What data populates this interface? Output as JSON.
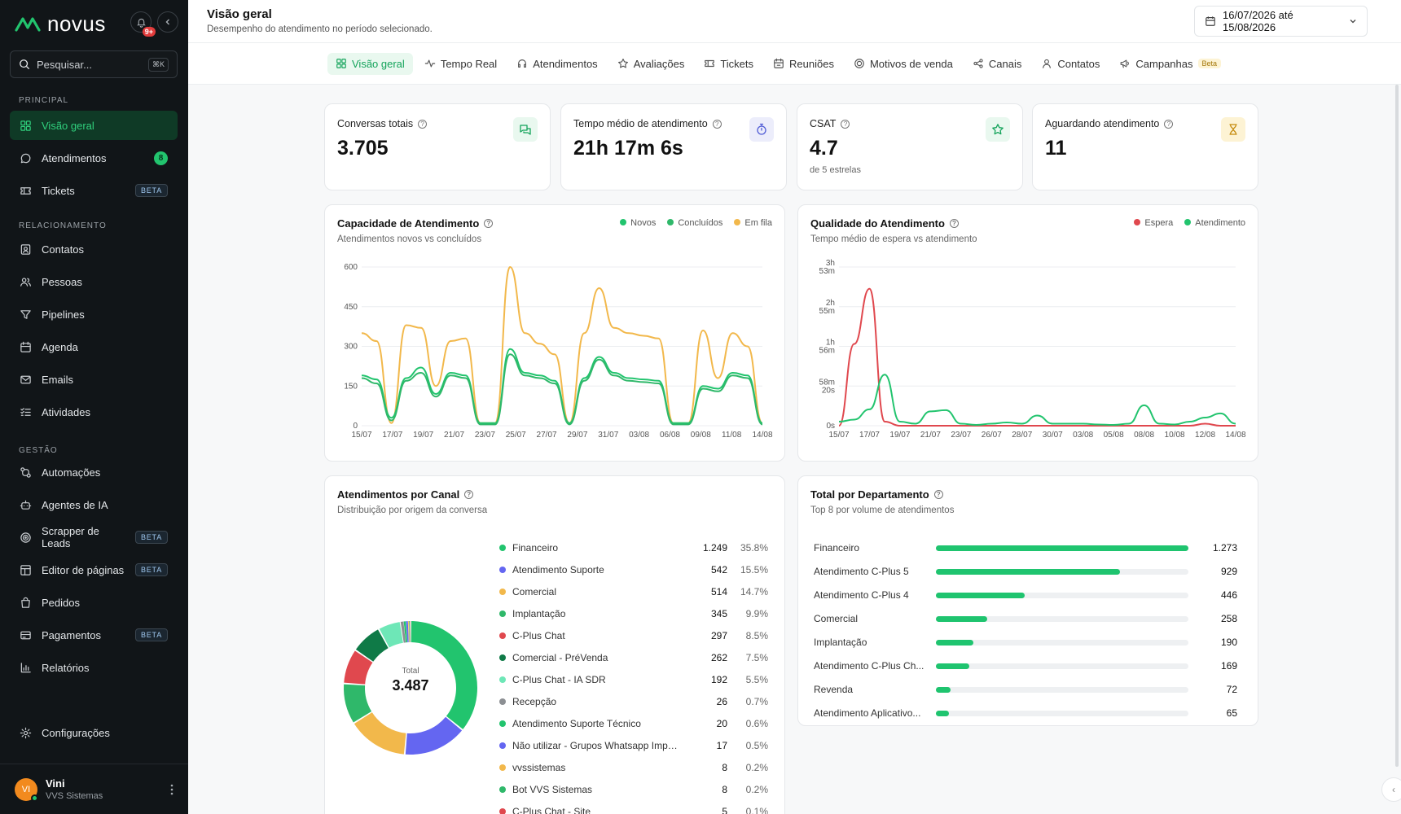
{
  "sidebar": {
    "brand": "novus",
    "notification_badge": "9+",
    "search": {
      "placeholder": "Pesquisar...",
      "shortcut": "⌘K"
    },
    "sections": [
      {
        "label": "PRINCIPAL"
      },
      {
        "label": "RELACIONAMENTO"
      },
      {
        "label": "GESTÃO"
      }
    ],
    "items": [
      {
        "label": "Visão geral",
        "icon": "grid-icon",
        "active": true
      },
      {
        "label": "Atendimentos",
        "icon": "chat-icon",
        "count": "8"
      },
      {
        "label": "Tickets",
        "icon": "ticket-icon",
        "badge": "BETA"
      },
      {
        "label": "Contatos",
        "icon": "contact-icon"
      },
      {
        "label": "Pessoas",
        "icon": "people-icon"
      },
      {
        "label": "Pipelines",
        "icon": "filter-icon"
      },
      {
        "label": "Agenda",
        "icon": "calendar-icon"
      },
      {
        "label": "Emails",
        "icon": "mail-icon"
      },
      {
        "label": "Atividades",
        "icon": "checklist-icon"
      },
      {
        "label": "Automações",
        "icon": "automation-icon"
      },
      {
        "label": "Agentes de IA",
        "icon": "bot-icon"
      },
      {
        "label": "Scrapper de Leads",
        "icon": "target-icon",
        "badge": "BETA"
      },
      {
        "label": "Editor de páginas",
        "icon": "layout-icon",
        "badge": "BETA"
      },
      {
        "label": "Pedidos",
        "icon": "bag-icon"
      },
      {
        "label": "Pagamentos",
        "icon": "card-icon",
        "badge": "BETA"
      },
      {
        "label": "Relatórios",
        "icon": "bar-chart-icon"
      },
      {
        "label": "Configurações",
        "icon": "gear-icon"
      }
    ],
    "user": {
      "initials": "VI",
      "name": "Vini",
      "org": "VVS Sistemas"
    }
  },
  "header": {
    "title": "Visão geral",
    "subtitle": "Desempenho do atendimento no período selecionado.",
    "date_range": "16/07/2026 até 15/08/2026"
  },
  "tabs": [
    {
      "label": "Visão geral",
      "active": true
    },
    {
      "label": "Tempo Real"
    },
    {
      "label": "Atendimentos"
    },
    {
      "label": "Avaliações"
    },
    {
      "label": "Tickets"
    },
    {
      "label": "Reuniões"
    },
    {
      "label": "Motivos de venda"
    },
    {
      "label": "Canais"
    },
    {
      "label": "Contatos"
    },
    {
      "label": "Campanhas",
      "badge": "Beta"
    }
  ],
  "kpis": [
    {
      "label": "Conversas totais",
      "value": "3.705",
      "icon": "chat-bubbles-icon",
      "color": "#13a35a"
    },
    {
      "label": "Tempo médio de atendimento",
      "value": "21h 17m 6s",
      "icon": "stopwatch-icon",
      "color": "#4f5bd5"
    },
    {
      "label": "CSAT",
      "value": "4.7",
      "note": "de 5 estrelas",
      "icon": "star-icon",
      "color": "#13a35a"
    },
    {
      "label": "Aguardando atendimento",
      "value": "11",
      "icon": "hourglass-icon",
      "color": "#c58a0c"
    }
  ],
  "capacity": {
    "title": "Capacidade de Atendimento",
    "subtitle": "Atendimentos novos vs concluídos",
    "legend": [
      {
        "name": "Novos",
        "color": "#22c46e"
      },
      {
        "name": "Concluídos",
        "color": "#2fb86a"
      },
      {
        "name": "Em fila",
        "color": "#f2b84b"
      }
    ]
  },
  "quality": {
    "title": "Qualidade do Atendimento",
    "subtitle": "Tempo médio de espera vs atendimento",
    "legend": [
      {
        "name": "Espera",
        "color": "#e0484e"
      },
      {
        "name": "Atendimento",
        "color": "#22c46e"
      }
    ]
  },
  "channels": {
    "title": "Atendimentos por Canal",
    "subtitle": "Distribuição por origem da conversa",
    "total_label": "Total",
    "total_value": "3.487",
    "rows": [
      {
        "name": "Financeiro",
        "count": "1.249",
        "pct": "35.8%",
        "color": "#22c46e",
        "value": 1249
      },
      {
        "name": "Atendimento Suporte",
        "count": "542",
        "pct": "15.5%",
        "color": "#6466f1",
        "value": 542
      },
      {
        "name": "Comercial",
        "count": "514",
        "pct": "14.7%",
        "color": "#f2b84b",
        "value": 514
      },
      {
        "name": "Implantação",
        "count": "345",
        "pct": "9.9%",
        "color": "#2fb86a",
        "value": 345
      },
      {
        "name": "C-Plus Chat",
        "count": "297",
        "pct": "8.5%",
        "color": "#e0484e",
        "value": 297
      },
      {
        "name": "Comercial - PréVenda",
        "count": "262",
        "pct": "7.5%",
        "color": "#0f7a47",
        "value": 262
      },
      {
        "name": "C-Plus Chat - IA SDR",
        "count": "192",
        "pct": "5.5%",
        "color": "#6ee7b7",
        "value": 192
      },
      {
        "name": "Recepção",
        "count": "26",
        "pct": "0.7%",
        "color": "#8c8f93",
        "value": 26
      },
      {
        "name": "Atendimento Suporte Técnico",
        "count": "20",
        "pct": "0.6%",
        "color": "#22c46e",
        "value": 20
      },
      {
        "name": "Não utilizar - Grupos Whatsapp Implantação...",
        "count": "17",
        "pct": "0.5%",
        "color": "#6466f1",
        "value": 17
      },
      {
        "name": "vvssistemas",
        "count": "8",
        "pct": "0.2%",
        "color": "#f2b84b",
        "value": 8
      },
      {
        "name": "Bot VVS Sistemas",
        "count": "8",
        "pct": "0.2%",
        "color": "#2fb86a",
        "value": 8
      },
      {
        "name": "C-Plus Chat - Site",
        "count": "5",
        "pct": "0.1%",
        "color": "#e0484e",
        "value": 5
      }
    ]
  },
  "departments": {
    "title": "Total por Departamento",
    "subtitle": "Top 8 por volume de atendimentos",
    "rows": [
      {
        "name": "Financeiro",
        "count": "1.273",
        "value": 1273
      },
      {
        "name": "Atendimento C-Plus 5",
        "count": "929",
        "value": 929
      },
      {
        "name": "Atendimento C-Plus 4",
        "count": "446",
        "value": 446
      },
      {
        "name": "Comercial",
        "count": "258",
        "value": 258
      },
      {
        "name": "Implantação",
        "count": "190",
        "value": 190
      },
      {
        "name": "Atendimento C-Plus Ch...",
        "count": "169",
        "value": 169
      },
      {
        "name": "Revenda",
        "count": "72",
        "value": 72
      },
      {
        "name": "Atendimento Aplicativo...",
        "count": "65",
        "value": 65
      }
    ]
  },
  "chart_data": [
    {
      "type": "line",
      "ylim": [
        0,
        600
      ],
      "yticks": [
        "0",
        "150",
        "300",
        "450",
        "600"
      ],
      "xticks": [
        "15/07",
        "17/07",
        "19/07",
        "21/07",
        "23/07",
        "25/07",
        "27/07",
        "29/07",
        "31/07",
        "03/08",
        "06/08",
        "09/08",
        "11/08",
        "14/08"
      ],
      "series": [
        {
          "name": "Em fila",
          "color": "#f2b84b",
          "values": [
            350,
            320,
            10,
            380,
            370,
            150,
            320,
            330,
            10,
            10,
            600,
            350,
            310,
            270,
            10,
            350,
            520,
            370,
            350,
            340,
            330,
            10,
            10,
            360,
            180,
            350,
            300,
            10
          ]
        },
        {
          "name": "Novos",
          "color": "#22c46e",
          "values": [
            190,
            175,
            30,
            180,
            220,
            120,
            200,
            190,
            10,
            10,
            290,
            200,
            190,
            170,
            10,
            180,
            260,
            200,
            180,
            175,
            170,
            10,
            10,
            150,
            140,
            200,
            190,
            10
          ]
        },
        {
          "name": "Concluídos",
          "color": "#2fb86a",
          "values": [
            180,
            160,
            20,
            170,
            200,
            110,
            190,
            180,
            5,
            5,
            270,
            190,
            180,
            160,
            5,
            170,
            250,
            190,
            170,
            165,
            160,
            5,
            5,
            140,
            130,
            190,
            180,
            5
          ]
        }
      ]
    },
    {
      "type": "line",
      "yticks": [
        "0s",
        "58m 20s",
        "1h 56m",
        "2h 55m",
        "3h 53m"
      ],
      "xticks": [
        "15/07",
        "17/07",
        "19/07",
        "21/07",
        "23/07",
        "26/07",
        "28/07",
        "30/07",
        "03/08",
        "05/08",
        "08/08",
        "10/08",
        "12/08",
        "14/08"
      ],
      "series": [
        {
          "name": "Espera",
          "color": "#e0484e",
          "values": [
            0,
            2,
            3.35,
            0.1,
            0,
            0,
            0,
            0,
            0,
            0,
            0,
            0,
            0,
            0,
            0,
            0,
            0,
            0,
            0,
            0,
            0,
            0,
            0,
            0,
            0.05,
            0,
            0
          ]
        },
        {
          "name": "Atendimento",
          "color": "#22c46e",
          "values": [
            0.1,
            0.15,
            0.4,
            1.25,
            0.1,
            0.05,
            0.35,
            0.38,
            0.05,
            0.02,
            0.05,
            0.08,
            0.05,
            0.25,
            0.05,
            0.05,
            0.05,
            0.03,
            0.02,
            0.05,
            0.5,
            0.05,
            0.03,
            0.1,
            0.2,
            0.3,
            0.05
          ]
        }
      ]
    }
  ]
}
